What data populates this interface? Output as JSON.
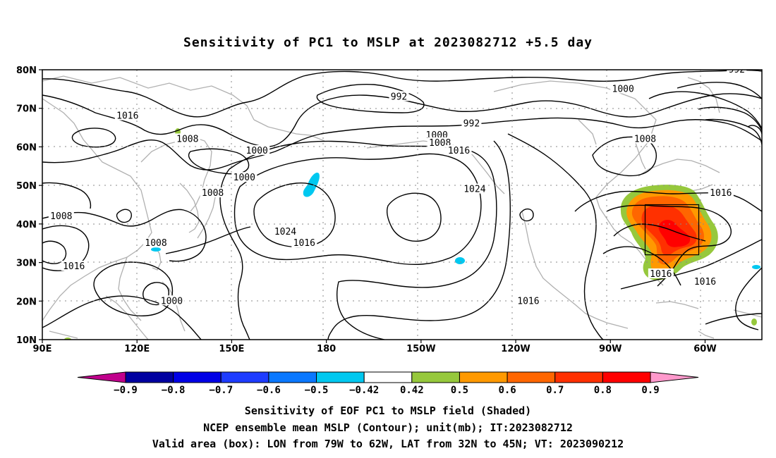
{
  "chart_data": {
    "type": "map",
    "title": "Sensitivity of PC1 to MSLP at 2023082712 +5.5 day",
    "lat_ticks": [
      "80N",
      "70N",
      "60N",
      "50N",
      "40N",
      "30N",
      "20N",
      "10N"
    ],
    "lon_ticks": [
      "90E",
      "120E",
      "150E",
      "180",
      "150W",
      "120W",
      "90W",
      "60W"
    ],
    "extent": {
      "lon_min": 90,
      "lon_max": 318,
      "lat_min": 10,
      "lat_max": 80
    },
    "colorbar": {
      "tick_labels": [
        "-0.9",
        "-0.8",
        "-0.7",
        "-0.6",
        "-0.5",
        "-0.42",
        "0.42",
        "0.5",
        "0.6",
        "0.7",
        "0.8",
        "0.9"
      ],
      "colors": [
        "#c0008c",
        "#0000a0",
        "#0000e6",
        "#1e3cff",
        "#0a78ff",
        "#00c8f0",
        "#ffffff",
        "#96c83c",
        "#ff9900",
        "#ff6600",
        "#ff3000",
        "#ff0000",
        "#ff99cc"
      ]
    },
    "contour_labels": [
      {
        "text": "992",
        "lon": 203,
        "lat": 73
      },
      {
        "text": "992",
        "lon": 226,
        "lat": 66
      },
      {
        "text": "992",
        "lon": 310,
        "lat": 80
      },
      {
        "text": "1000",
        "lon": 274,
        "lat": 75
      },
      {
        "text": "1000",
        "lon": 215,
        "lat": 63
      },
      {
        "text": "1000",
        "lon": 158,
        "lat": 59
      },
      {
        "text": "1000",
        "lon": 154,
        "lat": 52
      },
      {
        "text": "1000",
        "lon": 131,
        "lat": 20
      },
      {
        "text": "1008",
        "lon": 136,
        "lat": 62
      },
      {
        "text": "1008",
        "lon": 216,
        "lat": 61
      },
      {
        "text": "1008",
        "lon": 281,
        "lat": 62
      },
      {
        "text": "1008",
        "lon": 144,
        "lat": 48
      },
      {
        "text": "1008",
        "lon": 96,
        "lat": 42
      },
      {
        "text": "1008",
        "lon": 126,
        "lat": 35
      },
      {
        "text": "1016",
        "lon": 117,
        "lat": 68
      },
      {
        "text": "1016",
        "lon": 222,
        "lat": 59
      },
      {
        "text": "1016",
        "lon": 173,
        "lat": 35
      },
      {
        "text": "1016",
        "lon": 244,
        "lat": 20
      },
      {
        "text": "1016",
        "lon": 100,
        "lat": 29
      },
      {
        "text": "1016",
        "lon": 305,
        "lat": 48
      },
      {
        "text": "1016",
        "lon": 286,
        "lat": 27
      },
      {
        "text": "1016",
        "lon": 300,
        "lat": 25
      },
      {
        "text": "1024",
        "lon": 227,
        "lat": 49
      },
      {
        "text": "1024",
        "lon": 167,
        "lat": 38
      }
    ],
    "valid_box": {
      "lon_min": 281,
      "lon_max": 298,
      "lat_min": 32,
      "lat_max": 45
    }
  },
  "footer": {
    "line1": "Sensitivity of EOF PC1 to MSLP field (Shaded)",
    "line2": "NCEP ensemble mean MSLP (Contour); unit(mb); IT:2023082712",
    "line3": "Valid area (box): LON from 79W to 62W, LAT from 32N to 45N; VT: 2023090212"
  }
}
